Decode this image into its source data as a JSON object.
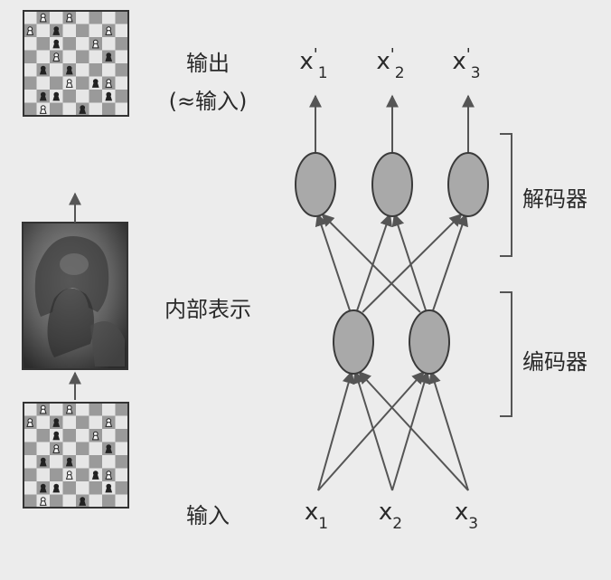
{
  "labels": {
    "output": "输出",
    "output_note": "(≈输入)",
    "latent": "内部表示",
    "input": "输入",
    "decoder": "解码器",
    "encoder": "编码器"
  },
  "inputs": [
    {
      "base": "x",
      "sub": "1"
    },
    {
      "base": "x",
      "sub": "2"
    },
    {
      "base": "x",
      "sub": "3"
    }
  ],
  "outputs": [
    {
      "base": "x",
      "prime": "'",
      "sub": "1"
    },
    {
      "base": "x",
      "prime": "'",
      "sub": "2"
    },
    {
      "base": "x",
      "prime": "'",
      "sub": "3"
    }
  ],
  "images": {
    "output_board": "chess-board (reconstructed)",
    "latent_image": "thinker-statue",
    "input_board": "chess-board (input)"
  },
  "colors": {
    "node_fill": "#a9a9a9",
    "node_stroke": "#3a3a3a",
    "arrow": "#555555",
    "board_light": "#e6e6e6",
    "board_dark": "#9a9a9a",
    "background": "#ececec"
  }
}
